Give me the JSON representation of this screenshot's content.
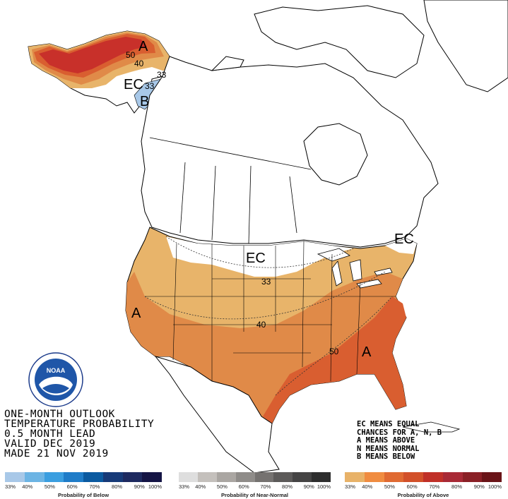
{
  "title_lines": [
    "ONE-MONTH OUTLOOK",
    "TEMPERATURE PROBABILITY",
    "0.5 MONTH LEAD",
    "VALID DEC 2019",
    "MADE 21 NOV 2019"
  ],
  "legend_notes": [
    "EC MEANS EQUAL",
    "CHANCES FOR A, N, B",
    "A MEANS ABOVE",
    "N MEANS NORMAL",
    "B MEANS BELOW"
  ],
  "map_labels": {
    "alaska_A": "A",
    "alaska_50": "50",
    "alaska_40": "40",
    "alaska_33": "33",
    "alaska_EC": "EC",
    "alaska_ec33": "33",
    "alaska_B": "B",
    "plains_EC": "EC",
    "contour_33": "33",
    "contour_40": "40",
    "contour_50": "50",
    "west_A": "A",
    "southeast_A": "A",
    "northeast_EC": "EC"
  },
  "scales": {
    "below": {
      "caption": "Probability of Below",
      "ticks": [
        "33%",
        "40%",
        "50%",
        "60%",
        "70%",
        "80%",
        "90%",
        "100%"
      ],
      "colors": [
        "#a8c8e8",
        "#6cb4e4",
        "#3a9ee0",
        "#1f7cc8",
        "#0b5aa0",
        "#173a78",
        "#1e2a60",
        "#151545"
      ]
    },
    "normal": {
      "caption": "Probability of Near-Normal",
      "ticks": [
        "33%",
        "40%",
        "50%",
        "60%",
        "70%",
        "80%",
        "90%",
        "100%"
      ],
      "colors": [
        "#dedede",
        "#c4c0bc",
        "#aaa6a2",
        "#8f8c89",
        "#757270",
        "#5c5a59",
        "#454444",
        "#2e2e2e"
      ]
    },
    "above": {
      "caption": "Probability of Above",
      "ticks": [
        "33%",
        "40%",
        "50%",
        "60%",
        "70%",
        "80%",
        "90%",
        "100%"
      ],
      "colors": [
        "#e8b268",
        "#f08c40",
        "#e06a32",
        "#d2502a",
        "#c03028",
        "#a82a36",
        "#8a2026",
        "#6a1418"
      ]
    }
  },
  "logo_text": "NOAA",
  "colors": {
    "above_33": "#e8b46a",
    "above_40": "#e08a48",
    "above_50": "#d95e30",
    "above_60": "#c8302a",
    "below_33": "#a8c8e8"
  }
}
